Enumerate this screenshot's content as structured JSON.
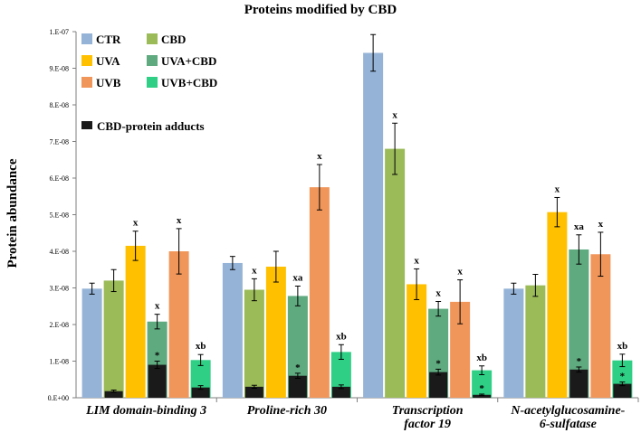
{
  "chart_data": {
    "type": "bar",
    "title": "Proteins modified by CBD",
    "ylabel": "Protein abundance",
    "xlabel": "",
    "ylim": [
      0,
      1e-07
    ],
    "yticks": [
      {
        "value": 0,
        "label": "0.E+00"
      },
      {
        "value": 1e-08,
        "label": "1.E-08"
      },
      {
        "value": 2e-08,
        "label": "2.E-08"
      },
      {
        "value": 3e-08,
        "label": "3.E-08"
      },
      {
        "value": 4e-08,
        "label": "4.E-08"
      },
      {
        "value": 5e-08,
        "label": "5.E-08"
      },
      {
        "value": 6e-08,
        "label": "6.E-08"
      },
      {
        "value": 7e-08,
        "label": "7.E-08"
      },
      {
        "value": 8e-08,
        "label": "8.E-08"
      },
      {
        "value": 9e-08,
        "label": "9.E-08"
      },
      {
        "value": 1e-07,
        "label": "1.E-07"
      }
    ],
    "categories": [
      {
        "lines": [
          "LIM domain-binding 3"
        ]
      },
      {
        "lines": [
          "Proline-rich 30"
        ]
      },
      {
        "lines": [
          "Transcription",
          "factor 19"
        ]
      },
      {
        "lines": [
          "N-acetylglucosamine-",
          "6-sulfatase"
        ]
      }
    ],
    "series": [
      {
        "name": "CTR",
        "color": "#95b3d7",
        "values": [
          2.98e-08,
          3.68e-08,
          9.42e-08,
          2.98e-08
        ],
        "errors": [
          1.5e-09,
          1.8e-09,
          5e-09,
          1.5e-09
        ],
        "labels": [
          "",
          "",
          "",
          ""
        ]
      },
      {
        "name": "CBD",
        "color": "#9bbb59",
        "values": [
          3.2e-08,
          2.95e-08,
          6.8e-08,
          3.07e-08
        ],
        "errors": [
          3e-09,
          3e-09,
          7e-09,
          3e-09
        ],
        "labels": [
          "",
          "x",
          "x",
          ""
        ]
      },
      {
        "name": "UVA",
        "color": "#ffc000",
        "values": [
          4.15e-08,
          3.58e-08,
          3.1e-08,
          5.07e-08
        ],
        "errors": [
          4e-09,
          4.2e-09,
          4.2e-09,
          4e-09
        ],
        "labels": [
          "x",
          "",
          "x",
          "x"
        ]
      },
      {
        "name": "UVA+CBD",
        "color": "#5faa7f",
        "values": [
          2.08e-08,
          2.78e-08,
          2.43e-08,
          4.05e-08
        ],
        "errors": [
          2e-09,
          2.7e-09,
          2e-09,
          4e-09
        ],
        "labels": [
          "x",
          "xa",
          "x",
          "xa"
        ]
      },
      {
        "name": "UVB",
        "color": "#f0965a",
        "values": [
          4e-08,
          5.75e-08,
          2.62e-08,
          3.92e-08
        ],
        "errors": [
          6.2e-09,
          6.2e-09,
          6e-09,
          6e-09
        ],
        "labels": [
          "x",
          "x",
          "x",
          "x"
        ]
      },
      {
        "name": "UVB+CBD",
        "color": "#2fcf85",
        "values": [
          1.03e-08,
          1.25e-08,
          7.5e-09,
          1.02e-08
        ],
        "errors": [
          1.5e-09,
          2e-09,
          1.2e-09,
          1.7e-09
        ],
        "labels": [
          "xb",
          "xb",
          "xb",
          "xb"
        ]
      }
    ],
    "adducts": {
      "name": "CBD-protein adducts",
      "color": "#1a1a1a",
      "values": [
        [
          0,
          1.8e-09,
          0,
          9e-09,
          0,
          2.8e-09
        ],
        [
          0,
          3e-09,
          0,
          6e-09,
          0,
          3e-09
        ],
        [
          0,
          0,
          0,
          7e-09,
          0,
          8e-10
        ],
        [
          0,
          0,
          0,
          7.7e-09,
          0,
          3.8e-09
        ]
      ],
      "errors": [
        [
          0,
          3e-10,
          0,
          1e-09,
          0,
          5e-10
        ],
        [
          0,
          4e-10,
          0,
          7e-10,
          0,
          5e-10
        ],
        [
          0,
          0,
          0,
          8e-10,
          0,
          2e-10
        ],
        [
          0,
          0,
          0,
          7e-10,
          0,
          5e-10
        ]
      ],
      "stars": [
        [
          false,
          false,
          false,
          true,
          false,
          false
        ],
        [
          false,
          false,
          false,
          true,
          false,
          false
        ],
        [
          false,
          false,
          false,
          true,
          false,
          true
        ],
        [
          false,
          false,
          false,
          true,
          false,
          true
        ]
      ]
    },
    "legend": {
      "position": "top-left",
      "star_symbol": "*"
    },
    "grid": false
  }
}
